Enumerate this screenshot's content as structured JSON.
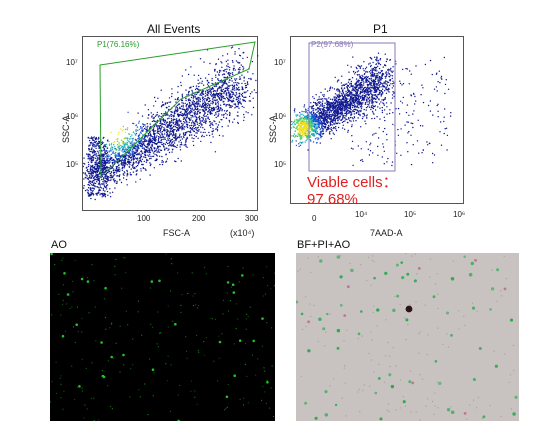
{
  "plots": {
    "all_events": {
      "title": "All Events",
      "x_label": "FSC-A",
      "x_unit": "(x10⁴)",
      "y_label": "SSC-A",
      "x_ticks": [
        "100",
        "200",
        "300"
      ],
      "y_ticks": [
        "10⁷",
        "10⁶",
        "10⁵"
      ],
      "gate_label": "P1(76.16%)",
      "gate_color": "#2a9d2a"
    },
    "p1": {
      "title": "P1",
      "x_label": "7AAD-A",
      "y_label": "SSC-A",
      "x_ticks": [
        "0",
        "10⁴",
        "10⁵",
        "10⁶"
      ],
      "y_ticks": [
        "10⁷",
        "10⁶",
        "10⁵"
      ],
      "gate_label": "P2(97.68%)",
      "gate_color": "#8a7ab8"
    }
  },
  "viable": {
    "line1": "Viable cells：",
    "line2": "97.68%",
    "color": "#e02020"
  },
  "images": {
    "ao": {
      "label": "AO",
      "background": "#000000",
      "dot_color": "#22c02a"
    },
    "bf": {
      "label": "BF+PI+AO",
      "background": "#c8c3c0",
      "dot_color": "#1fa84a"
    }
  }
}
